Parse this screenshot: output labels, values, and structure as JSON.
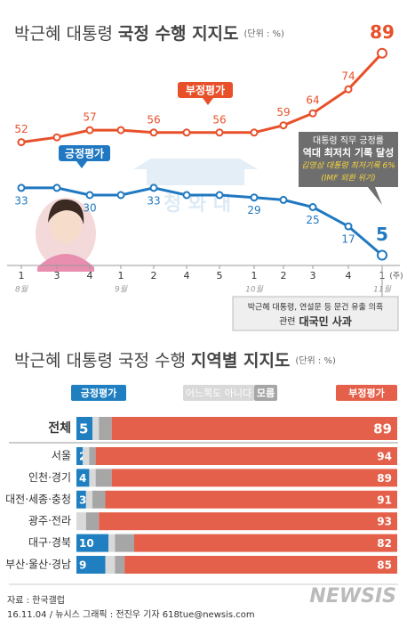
{
  "chart_data": [
    {
      "type": "line",
      "title": "박근혜 대통령",
      "title_emphasis": "국정 수행 지지도",
      "unit": "(단위 : %)",
      "categories": [
        "1",
        "3",
        "4",
        "1",
        "2",
        "4",
        "5",
        "1",
        "2",
        "3",
        "4",
        "1"
      ],
      "months": [
        "8월",
        null,
        null,
        "9월",
        null,
        null,
        null,
        "10월",
        null,
        null,
        null,
        "11월"
      ],
      "x_suffix": "(주)",
      "series": [
        {
          "name": "부정평가",
          "color": "#e8502a",
          "values": [
            52,
            54,
            57,
            57,
            56,
            56,
            56,
            56,
            59,
            64,
            74,
            89
          ],
          "value_labels": [
            "52",
            null,
            "57",
            null,
            "56",
            null,
            "56",
            null,
            "59",
            "64",
            "74",
            "89"
          ]
        },
        {
          "name": "긍정평가",
          "color": "#1f78c1",
          "values": [
            33,
            33,
            30,
            30,
            33,
            30,
            30,
            29,
            28,
            25,
            17,
            5
          ],
          "value_labels": [
            "33",
            null,
            "30",
            null,
            "33",
            null,
            null,
            "29",
            null,
            "25",
            "17",
            "5"
          ]
        }
      ],
      "watermark": "청 와 대",
      "record_note": [
        "대통령 직무 긍정률",
        "역대 최저치 기록 달성",
        "김영삼 대통령 최저기록 6%",
        "(IMF 외환 위기)"
      ],
      "event_note": [
        "박근혜 대통령, 연설문 등 문건 유출 의혹",
        "관련",
        "대국민 사과"
      ]
    },
    {
      "type": "stacked-bar",
      "title": "박근혜 대통령 국정 수행",
      "title_emphasis": "지역별 지지도",
      "unit": "(단위 : %)",
      "xlim": [
        0,
        100
      ],
      "categories": [
        "전체",
        "서울",
        "인천·경기",
        "대전·세종·충청",
        "광주·전라",
        "대구·경북",
        "부산·울산·경남"
      ],
      "series": [
        {
          "name": "긍정평가",
          "color": "#1f7fc1",
          "values": [
            5,
            2,
            4,
            3,
            0,
            10,
            9
          ],
          "value_labels": [
            "5",
            "2",
            "4",
            "3",
            null,
            "10",
            "9"
          ]
        },
        {
          "name": "어느쪽도 아니다",
          "color": "#d9d9d9",
          "values": [
            2,
            2,
            2,
            2,
            3,
            2,
            3
          ]
        },
        {
          "name": "모름",
          "color": "#a6a6a6",
          "values": [
            4,
            2,
            5,
            4,
            4,
            6,
            3
          ]
        },
        {
          "name": "부정평가",
          "color": "#e5604a",
          "values": [
            89,
            94,
            89,
            91,
            93,
            82,
            85
          ],
          "value_labels": [
            "89",
            "94",
            "89",
            "91",
            "93",
            "82",
            "85"
          ]
        }
      ]
    }
  ],
  "footer": {
    "source": "자료 : 한국갤럽",
    "credit": "16.11.04 / 뉴시스 그래픽 : 전진우 기자 618tue@newsis.com",
    "logo": "NEWSIS"
  }
}
